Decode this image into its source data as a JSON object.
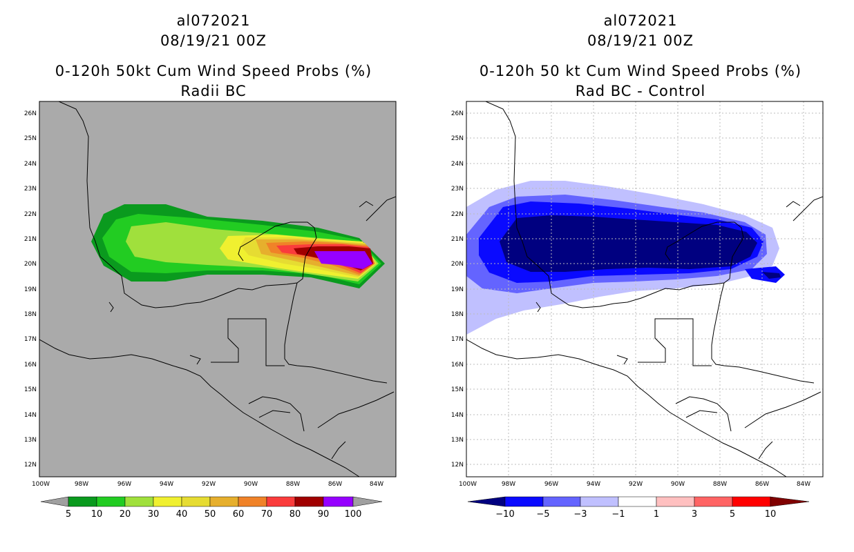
{
  "colors": {
    "land_bg": "#aaaaaa",
    "p5": "#0a9a1e",
    "p10": "#22cc22",
    "p20": "#a0e03c",
    "p30": "#f0f030",
    "p40": "#e6dc32",
    "p50": "#e6af2d",
    "p60": "#f08228",
    "p70": "#fa3c3c",
    "p80": "#a00000",
    "p90": "#9600ff",
    "p_over": "#a0a0a0",
    "d_m10": "#000080",
    "d_m5": "#0a0aff",
    "d_m3": "#6464ff",
    "d_m1": "#c0c0ff",
    "d_0": "#ffffff",
    "d_p1": "#ffc0c0",
    "d_p3": "#ff6464",
    "d_p5": "#ff0000",
    "d_p10": "#800000"
  },
  "left_panel": {
    "storm_id": "al072021",
    "datetime": "08/19/21 00Z",
    "product": "0-120h 50kt Cum Wind Speed Probs (%)",
    "subtitle": "Radii BC",
    "lat_labels": [
      "26N",
      "25N",
      "24N",
      "23N",
      "22N",
      "21N",
      "20N",
      "19N",
      "18N",
      "17N",
      "16N",
      "15N",
      "14N",
      "13N",
      "12N"
    ],
    "lon_labels": [
      "100W",
      "98W",
      "96W",
      "94W",
      "92W",
      "90W",
      "88W",
      "86W",
      "84W"
    ],
    "colorbar_labels": [
      "5",
      "10",
      "20",
      "30",
      "40",
      "50",
      "60",
      "70",
      "80",
      "90",
      "100"
    ]
  },
  "right_panel": {
    "storm_id": "al072021",
    "datetime": "08/19/21 00Z",
    "product": "0-120h 50 kt Cum Wind Speed Probs (%)",
    "subtitle": "Rad BC - Control",
    "lat_labels": [
      "26N",
      "25N",
      "24N",
      "23N",
      "22N",
      "21N",
      "20N",
      "19N",
      "18N",
      "17N",
      "16N",
      "15N",
      "14N",
      "13N",
      "12N"
    ],
    "lon_labels": [
      "100W",
      "98W",
      "96W",
      "94W",
      "92W",
      "90W",
      "88W",
      "86W",
      "84W"
    ],
    "colorbar_labels": [
      "−10",
      "−5",
      "−3",
      "−1",
      "1",
      "3",
      "5",
      "10"
    ]
  }
}
